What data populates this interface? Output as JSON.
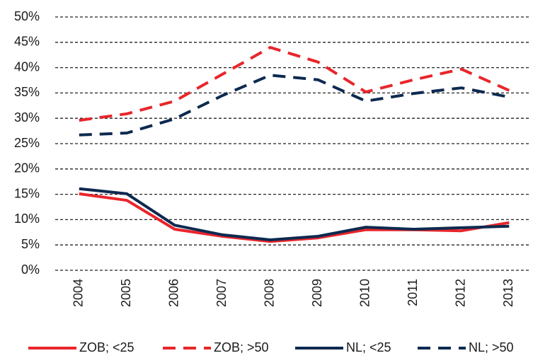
{
  "chart_data": {
    "type": "line",
    "categories": [
      "2004",
      "2005",
      "2006",
      "2007",
      "2008",
      "2009",
      "2010",
      "2011",
      "2012",
      "2013"
    ],
    "series": [
      {
        "name": "ZOB; <25",
        "color": "#e8262b",
        "line_style": "solid",
        "values": [
          15.1,
          13.8,
          8.1,
          6.7,
          5.7,
          6.4,
          8.0,
          8.0,
          7.8,
          9.4
        ]
      },
      {
        "name": "ZOB; >50",
        "color": "#e8262b",
        "line_style": "dashed",
        "values": [
          29.6,
          30.9,
          33.4,
          38.7,
          44.0,
          41.1,
          35.2,
          37.6,
          39.7,
          35.5
        ]
      },
      {
        "name": "NL; <25",
        "color": "#0d2a50",
        "line_style": "solid",
        "values": [
          16.1,
          15.1,
          8.9,
          7.0,
          6.0,
          6.7,
          8.5,
          8.1,
          8.4,
          8.7
        ]
      },
      {
        "name": "NL; >50",
        "color": "#0d2a50",
        "line_style": "dashed",
        "values": [
          26.7,
          27.1,
          29.9,
          34.5,
          38.5,
          37.6,
          33.4,
          34.9,
          36.0,
          34.2
        ]
      }
    ],
    "ylim": [
      0,
      50
    ],
    "yticks": [
      {
        "value": 0,
        "label": "0%"
      },
      {
        "value": 5,
        "label": "5%"
      },
      {
        "value": 10,
        "label": "10%"
      },
      {
        "value": 15,
        "label": "15%"
      },
      {
        "value": 20,
        "label": "20%"
      },
      {
        "value": 25,
        "label": "25%"
      },
      {
        "value": 30,
        "label": "30%"
      },
      {
        "value": 35,
        "label": "35%"
      },
      {
        "value": 40,
        "label": "40%"
      },
      {
        "value": 45,
        "label": "45%"
      },
      {
        "value": 50,
        "label": "50%"
      }
    ],
    "grid": true,
    "legend": "bottom"
  }
}
